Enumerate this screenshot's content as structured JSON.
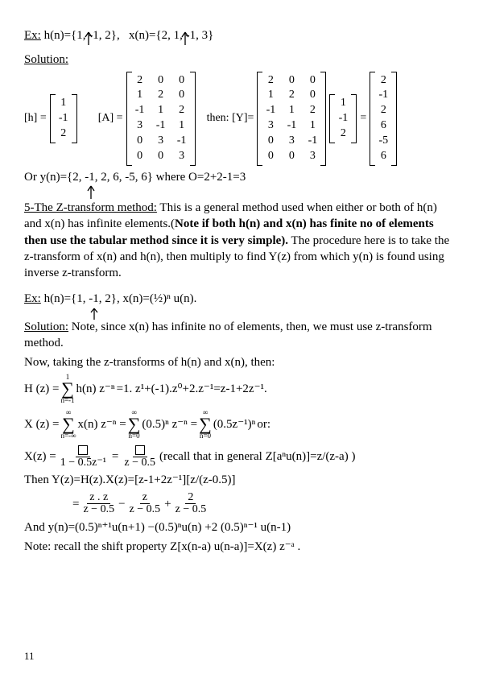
{
  "ex1": {
    "label": "Ex:",
    "h": "h(n)={1, -1, 2},",
    "x": "x(n)={2, 1, -1, 3}"
  },
  "solution_label": "Solution:",
  "mat": {
    "h_label": "[h] =",
    "A_label": "[A] =",
    "then_label": "then: [Y]=",
    "eq": "=",
    "h": [
      "1",
      "-1",
      "2"
    ],
    "A": [
      [
        "2",
        "0",
        "0"
      ],
      [
        "1",
        "2",
        "0"
      ],
      [
        "-1",
        "1",
        "2"
      ],
      [
        "3",
        "-1",
        "1"
      ],
      [
        "0",
        "3",
        "-1"
      ],
      [
        "0",
        "0",
        "3"
      ]
    ],
    "y_calc": [
      [
        "2",
        "0",
        "0"
      ],
      [
        "1",
        "2",
        "0"
      ],
      [
        "-1",
        "1",
        "2"
      ],
      [
        "3",
        "-1",
        "1"
      ],
      [
        "0",
        "3",
        "-1"
      ],
      [
        "0",
        "0",
        "3"
      ]
    ],
    "y_vec": [
      "1",
      "-1",
      "2"
    ],
    "y_res": [
      "2",
      "-1",
      "2",
      "6",
      "-5",
      "6"
    ]
  },
  "or_line": "Or y(n)={2, -1, 2, 6, -5, 6} where O=2+2-1=3",
  "ztrans": {
    "heading": "5-The Z-transform method:",
    "body1": " This is a general method used when either or both of h(n) and x(n) has infinite elements.(",
    "bold": "Note if both h(n) and x(n) has finite no of elements then use the tabular method since it is very simple).",
    "body2": " The procedure here is to take the z-transform of x(n) and h(n), then multiply to find Y(z) from which y(n) is found using inverse z-transform."
  },
  "ex2": {
    "label": "Ex:",
    "text": "  h(n)={1, -1, 2}, x(n)=(½)ⁿ u(n)."
  },
  "sol2": {
    "text1": " Note, since x(n) has infinite no of elements, then, we must use z-transform method.",
    "text2": "Now, taking the z-transforms of h(n) and x(n), then:"
  },
  "Hz": {
    "lhs": "H (z) = ",
    "upper": "1",
    "lower": "n=-1",
    "mid": "h(n) z⁻ⁿ",
    "rhs": " =1.  z¹+(-1).z⁰+2.z⁻¹=z-1+2z⁻¹."
  },
  "Xz": {
    "lhs": "X (z) = ",
    "low1": "n=-∞",
    "up": "∞",
    "mid1": "x(n) z⁻ⁿ = ",
    "low2": "n=0",
    "mid2": "(0.5)ⁿ z⁻ⁿ = ",
    "mid3": "(0.5z⁻¹)ⁿ",
    "or": "  or:"
  },
  "Xz2": {
    "lhs": "X(z) =",
    "den1": "1 − 0.5z⁻¹",
    "den2": "z − 0.5",
    "recall": "  (recall that in general Z[aⁿu(n)]=z/(z-a) )"
  },
  "then_line": "Then Y(z)=H(z).X(z)=[z-1+2z⁻¹][z/(z-0.5)]",
  "yz_frac": {
    "eq": "= ",
    "n1": "z . z",
    "d1": "z − 0.5",
    "m1": " − ",
    "n2": "z",
    "d2": "z − 0.5",
    "m2": " + ",
    "n3": "2",
    "d3": "z − 0.5"
  },
  "and_line": "And y(n)=(0.5)ⁿ⁺¹u(n+1) −(0.5)ⁿu(n) +2 (0.5)ⁿ⁻¹ u(n-1)",
  "note_line": "Note: recall the shift property Z[x(n-a) u(n-a)]=X(z) z⁻ᵃ .",
  "page": "11"
}
